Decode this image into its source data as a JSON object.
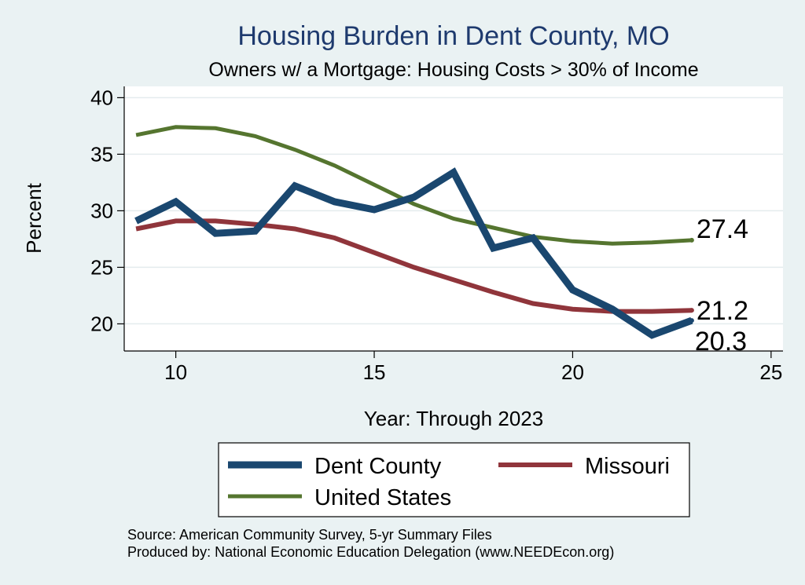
{
  "chart_data": {
    "type": "line",
    "title": "Housing Burden in Dent County, MO",
    "subtitle": "Owners w/ a Mortgage: Housing Costs > 30% of Income",
    "xlabel": "Year: Through 2023",
    "ylabel": "Percent",
    "xlim": [
      8.7,
      25.3
    ],
    "ylim": [
      17.6,
      41
    ],
    "xticks": [
      10,
      15,
      20,
      25
    ],
    "yticks": [
      20,
      25,
      30,
      35,
      40
    ],
    "grid": true,
    "legend_position": "bottom",
    "x": [
      9,
      10,
      11,
      12,
      13,
      14,
      15,
      16,
      17,
      18,
      19,
      20,
      21,
      22,
      23
    ],
    "series": [
      {
        "name": "Dent County",
        "color": "#1a476f",
        "values": [
          29.1,
          30.8,
          28.0,
          28.2,
          32.2,
          30.8,
          30.1,
          31.2,
          33.4,
          26.7,
          27.6,
          23.0,
          21.3,
          19.0,
          20.3
        ],
        "end_label": "20.3"
      },
      {
        "name": "Missouri",
        "color": "#90353b",
        "values": [
          28.4,
          29.1,
          29.1,
          28.8,
          28.4,
          27.6,
          26.3,
          25.0,
          23.9,
          22.8,
          21.8,
          21.3,
          21.1,
          21.1,
          21.2
        ],
        "end_label": "21.2"
      },
      {
        "name": "United States",
        "color": "#55752f",
        "values": [
          36.7,
          37.4,
          37.3,
          36.6,
          35.4,
          34.0,
          32.3,
          30.6,
          29.3,
          28.5,
          27.7,
          27.3,
          27.1,
          27.2,
          27.4
        ],
        "end_label": "27.4"
      }
    ]
  },
  "footer": {
    "source": "Source: American Community Survey, 5-yr Summary Files",
    "produced": "Produced by: National Economic Education Delegation (www.NEEDEcon.org)"
  }
}
